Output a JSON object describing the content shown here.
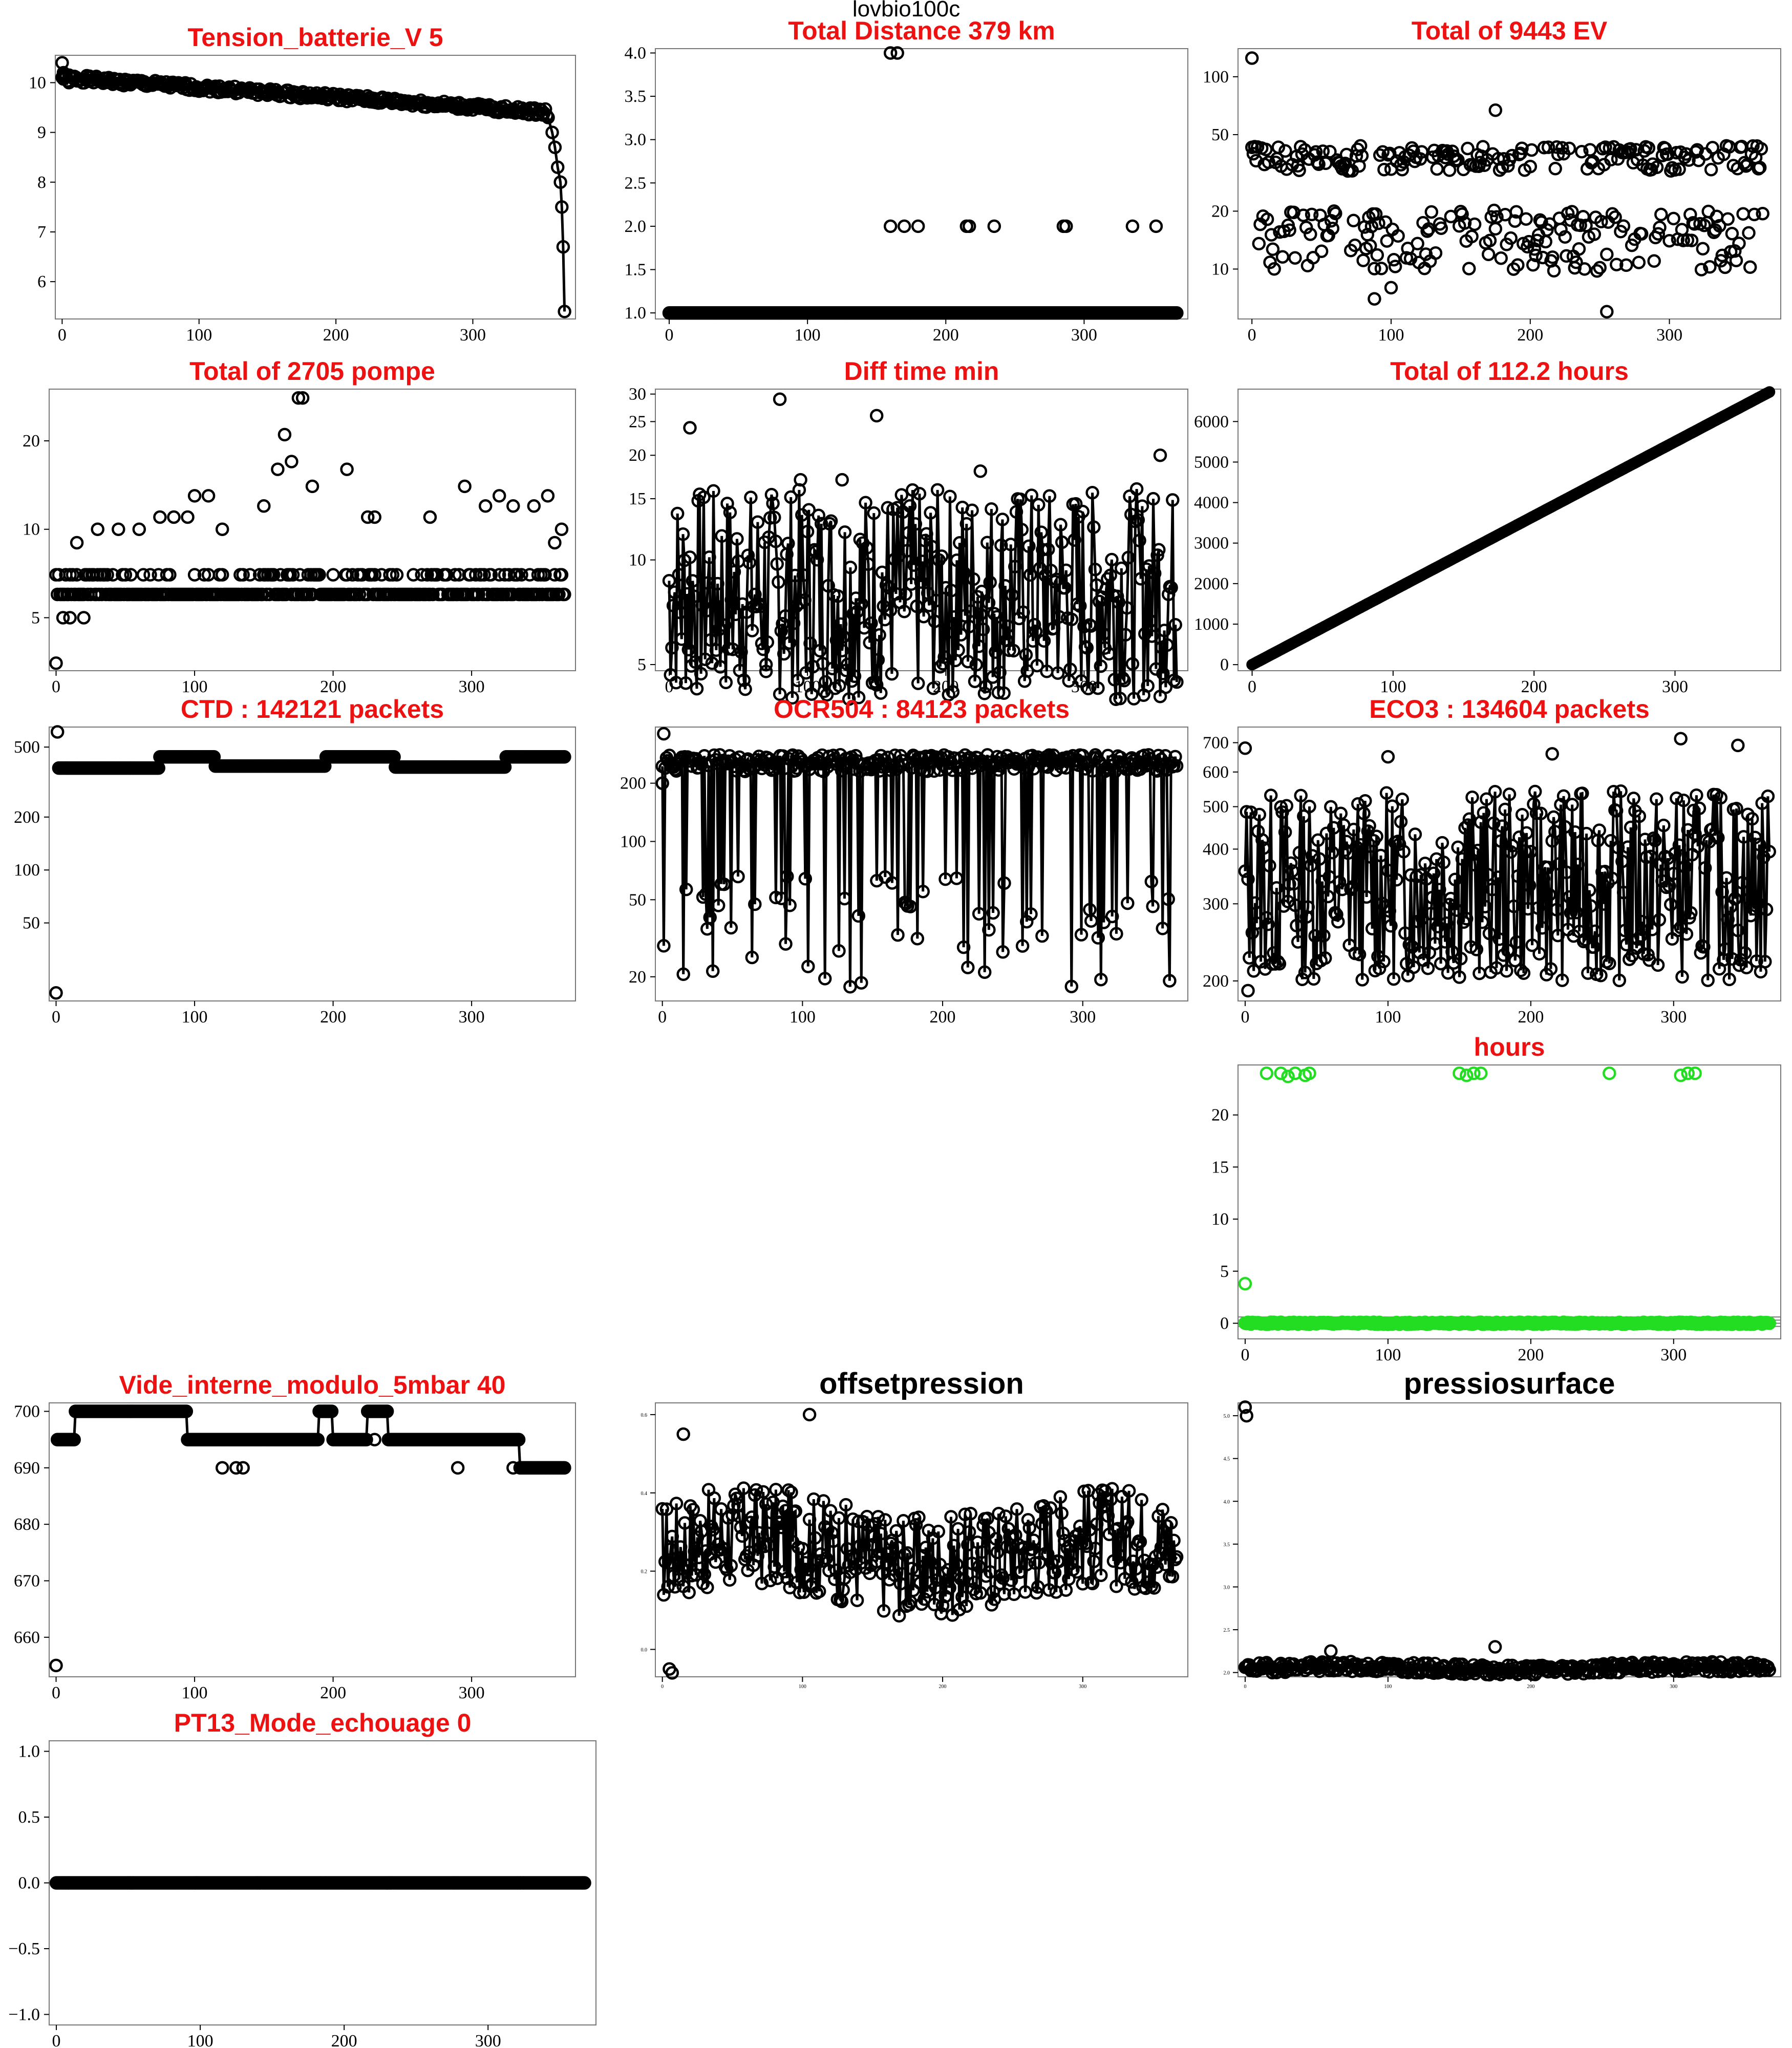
{
  "figure": {
    "title": "lovbio100c",
    "marker_colors": {
      "default": "#000000",
      "highlight": "#22dd22",
      "title": "#ee1111"
    }
  },
  "chart_data": [
    {
      "id": "tension",
      "type": "line",
      "log_y": false,
      "points": true,
      "lines": true,
      "title": "Tension_batterie_V 5",
      "xlim": [
        -5,
        375
      ],
      "ylim": [
        5.25,
        10.55
      ],
      "xticks": [
        0,
        100,
        200,
        300
      ],
      "yticks": [
        6,
        7,
        8,
        9,
        10
      ],
      "generator": "linear_decay",
      "n": 368,
      "y_start": 10.1,
      "y_end": 9.4,
      "tail": [
        [
          355,
          9.3
        ],
        [
          358,
          9.0
        ],
        [
          360,
          8.7
        ],
        [
          362,
          8.3
        ],
        [
          364,
          8.0
        ],
        [
          365,
          7.5
        ],
        [
          366,
          6.7
        ],
        [
          367,
          5.4
        ]
      ],
      "extra_points": [
        [
          0,
          10.4
        ],
        [
          1,
          10.2
        ],
        [
          2,
          10.1
        ],
        [
          5,
          10.0
        ]
      ]
    },
    {
      "id": "distance",
      "type": "scatter",
      "log_y": false,
      "points": true,
      "lines": false,
      "title": "Total Distance  379  km",
      "xlim": [
        -10,
        375
      ],
      "ylim": [
        0.93,
        4.05
      ],
      "xticks": [
        0,
        100,
        200,
        300
      ],
      "yticks": [
        1.0,
        1.5,
        2.0,
        2.5,
        3.0,
        3.5,
        4.0
      ],
      "generator": "constant",
      "n": 368,
      "base": 1.0,
      "extra_points": [
        [
          160,
          4
        ],
        [
          165,
          4
        ],
        [
          160,
          2
        ],
        [
          170,
          2
        ],
        [
          180,
          2
        ],
        [
          215,
          2
        ],
        [
          217,
          2
        ],
        [
          235,
          2
        ],
        [
          285,
          2
        ],
        [
          287,
          2
        ],
        [
          335,
          2
        ],
        [
          352,
          2
        ]
      ]
    },
    {
      "id": "ev",
      "type": "scatter",
      "log_y": true,
      "points": true,
      "lines": false,
      "title": "Total of  9443  EV",
      "xlim": [
        -10,
        380
      ],
      "ylim": [
        5.5,
        140
      ],
      "xticks": [
        0,
        100,
        200,
        300
      ],
      "yticks": [
        10,
        20,
        50,
        100
      ],
      "generator": "bimodal",
      "n": 368,
      "high": 38,
      "low": 15,
      "seed": 3,
      "extra_points": [
        [
          0,
          125
        ],
        [
          175,
          67
        ],
        [
          88,
          7
        ],
        [
          100,
          8
        ],
        [
          255,
          6
        ]
      ]
    },
    {
      "id": "pompe",
      "type": "scatter",
      "log_y": true,
      "points": true,
      "lines": false,
      "title": "Total of  2705  pompe",
      "xlim": [
        -5,
        375
      ],
      "ylim": [
        3.3,
        30
      ],
      "xticks": [
        0,
        100,
        200,
        300
      ],
      "yticks": [
        5,
        10,
        20
      ],
      "generator": "levels",
      "n": 368,
      "base": 6,
      "alt": 7,
      "seed": 5,
      "extra_points": [
        [
          0,
          3.5
        ],
        [
          5,
          5
        ],
        [
          10,
          5
        ],
        [
          15,
          9
        ],
        [
          20,
          5
        ],
        [
          30,
          10
        ],
        [
          45,
          10
        ],
        [
          60,
          10
        ],
        [
          75,
          11
        ],
        [
          85,
          11
        ],
        [
          95,
          11
        ],
        [
          100,
          13
        ],
        [
          110,
          13
        ],
        [
          120,
          10
        ],
        [
          150,
          12
        ],
        [
          160,
          16
        ],
        [
          165,
          21
        ],
        [
          170,
          17
        ],
        [
          175,
          28
        ],
        [
          178,
          28
        ],
        [
          185,
          14
        ],
        [
          210,
          16
        ],
        [
          225,
          11
        ],
        [
          230,
          11
        ],
        [
          270,
          11
        ],
        [
          295,
          14
        ],
        [
          310,
          12
        ],
        [
          320,
          13
        ],
        [
          330,
          12
        ],
        [
          345,
          12
        ],
        [
          355,
          13
        ],
        [
          360,
          9
        ],
        [
          365,
          10
        ]
      ]
    },
    {
      "id": "difftime",
      "type": "line",
      "log_y": true,
      "points": true,
      "lines": true,
      "title": "Diff time min",
      "xlim": [
        -10,
        375
      ],
      "ylim": [
        4.8,
        31
      ],
      "xticks": [
        0,
        100,
        200,
        300
      ],
      "yticks": [
        5,
        10,
        15,
        20,
        25,
        30
      ],
      "generator": "noisy",
      "n": 368,
      "center": 8,
      "spread": 0.35,
      "seed": 7,
      "extra_points": [
        [
          70,
          5
        ],
        [
          80,
          29
        ],
        [
          95,
          17
        ],
        [
          150,
          26
        ],
        [
          15,
          24
        ],
        [
          125,
          17
        ],
        [
          225,
          18
        ],
        [
          355,
          20
        ]
      ]
    },
    {
      "id": "hours_total",
      "type": "line",
      "log_y": false,
      "points": true,
      "lines": true,
      "title": "Total of  112.2  hours",
      "xlim": [
        -10,
        375
      ],
      "ylim": [
        -150,
        6800
      ],
      "xticks": [
        0,
        100,
        200,
        300
      ],
      "yticks": [
        0,
        1000,
        2000,
        3000,
        4000,
        5000,
        6000
      ],
      "generator": "ramp",
      "n": 368,
      "y_start": 0,
      "y_end": 6730
    },
    {
      "id": "ctd",
      "type": "line",
      "log_y": true,
      "points": true,
      "lines": true,
      "title": "CTD  : 142121  packets",
      "xlim": [
        -5,
        375
      ],
      "ylim": [
        18,
        650
      ],
      "xticks": [
        0,
        100,
        200,
        300
      ],
      "yticks": [
        50,
        100,
        200,
        500
      ],
      "generator": "steps",
      "n": 368,
      "segments": [
        [
          2,
          75,
          380
        ],
        [
          75,
          115,
          440
        ],
        [
          115,
          195,
          390
        ],
        [
          195,
          245,
          440
        ],
        [
          245,
          325,
          385
        ],
        [
          325,
          368,
          440
        ]
      ],
      "extra_points": [
        [
          0,
          20
        ],
        [
          1,
          610
        ]
      ]
    },
    {
      "id": "ocr",
      "type": "line",
      "log_y": true,
      "points": true,
      "lines": true,
      "title": "OCR504  : 84123  packets",
      "xlim": [
        -5,
        375
      ],
      "ylim": [
        15,
        390
      ],
      "xticks": [
        0,
        100,
        200,
        300
      ],
      "yticks": [
        20,
        50,
        100,
        200
      ],
      "generator": "dropouts",
      "n": 368,
      "base": 255,
      "low": 25,
      "seed": 11,
      "extra_points": [
        [
          0,
          200
        ],
        [
          1,
          360
        ]
      ]
    },
    {
      "id": "eco3",
      "type": "line",
      "log_y": true,
      "points": true,
      "lines": true,
      "title": "ECO3  : 134604  packets",
      "xlim": [
        -5,
        375
      ],
      "ylim": [
        180,
        760
      ],
      "xticks": [
        0,
        100,
        200,
        300
      ],
      "yticks": [
        200,
        300,
        400,
        500,
        600,
        700
      ],
      "generator": "noisy",
      "n": 368,
      "center": 330,
      "spread": 0.25,
      "seed": 13,
      "extra_points": [
        [
          0,
          680
        ],
        [
          2,
          190
        ],
        [
          100,
          650
        ],
        [
          215,
          660
        ],
        [
          305,
          715
        ],
        [
          345,
          690
        ]
      ]
    },
    {
      "id": "hours_daily",
      "type": "scatter",
      "log_y": false,
      "points": true,
      "lines": false,
      "title": "hours",
      "color": "#22dd22",
      "xlim": [
        -5,
        375
      ],
      "ylim": [
        -1.5,
        24.8
      ],
      "xticks": [
        0,
        100,
        200,
        300
      ],
      "yticks": [
        0,
        5,
        10,
        15,
        20
      ],
      "hlines": [
        -0.3,
        0,
        0.3,
        0.6
      ],
      "generator": "near_zero",
      "n": 368,
      "extra_points": [
        [
          0,
          3.8
        ],
        [
          15,
          24
        ],
        [
          25,
          24
        ],
        [
          30,
          23.7
        ],
        [
          35,
          24
        ],
        [
          42,
          23.8
        ],
        [
          45,
          24
        ],
        [
          150,
          24
        ],
        [
          155,
          23.8
        ],
        [
          160,
          24
        ],
        [
          165,
          24
        ],
        [
          255,
          24
        ],
        [
          305,
          23.8
        ],
        [
          310,
          24
        ],
        [
          315,
          24
        ]
      ]
    },
    {
      "id": "vide",
      "type": "line",
      "log_y": false,
      "points": true,
      "lines": true,
      "title": "Vide_interne_modulo_5mbar 40",
      "xlim": [
        -5,
        375
      ],
      "ylim": [
        653,
        701.5
      ],
      "xticks": [
        0,
        100,
        200,
        300
      ],
      "yticks": [
        660,
        670,
        680,
        690,
        700
      ],
      "generator": "steps",
      "n": 368,
      "segments": [
        [
          1,
          14,
          695
        ],
        [
          14,
          22,
          700
        ],
        [
          22,
          95,
          700
        ],
        [
          95,
          190,
          695
        ],
        [
          190,
          200,
          700
        ],
        [
          200,
          235,
          695
        ],
        [
          225,
          240,
          700
        ],
        [
          240,
          335,
          695
        ],
        [
          335,
          368,
          690
        ]
      ],
      "extra_points": [
        [
          0,
          655
        ],
        [
          120,
          690
        ],
        [
          130,
          690
        ],
        [
          135,
          690
        ],
        [
          205,
          695
        ],
        [
          230,
          695
        ],
        [
          290,
          690
        ],
        [
          330,
          690
        ]
      ]
    },
    {
      "id": "offset",
      "type": "line",
      "log_y": false,
      "points": true,
      "lines": true,
      "title": "offsetpression",
      "title_style": "black",
      "tick_style": "small",
      "xlim": [
        -5,
        375
      ],
      "ylim": [
        -0.07,
        0.63
      ],
      "xticks": [
        0,
        100,
        200,
        300
      ],
      "yticks": [
        0.0,
        0.2,
        0.4,
        0.6
      ],
      "generator": "noisy_lin",
      "n": 368,
      "center": 0.25,
      "amp": 0.13,
      "seed": 17,
      "extra_points": [
        [
          5,
          -0.05
        ],
        [
          7,
          -0.06
        ],
        [
          105,
          0.6
        ],
        [
          15,
          0.55
        ]
      ]
    },
    {
      "id": "pressio",
      "type": "line",
      "log_y": false,
      "points": true,
      "lines": true,
      "title": "pressiosurface",
      "title_style": "black",
      "tick_style": "small",
      "xlim": [
        -5,
        375
      ],
      "ylim": [
        1.95,
        5.15
      ],
      "xticks": [
        0,
        100,
        200,
        300
      ],
      "yticks": [
        2.0,
        2.5,
        3.0,
        3.5,
        4.0,
        4.5,
        5.0
      ],
      "generator": "noisy_lin",
      "n": 368,
      "center": 2.05,
      "amp": 0.06,
      "seed": 19,
      "extra_points": [
        [
          0,
          5.1
        ],
        [
          1,
          5.0
        ],
        [
          60,
          2.25
        ],
        [
          175,
          2.3
        ]
      ]
    },
    {
      "id": "echouage",
      "type": "line",
      "log_y": false,
      "points": true,
      "lines": true,
      "title": "PT13_Mode_echouage  0",
      "xlim": [
        -5,
        375
      ],
      "ylim": [
        -1.08,
        1.08
      ],
      "xticks": [
        0,
        100,
        200,
        300
      ],
      "yticks": [
        -1.0,
        -0.5,
        0.0,
        0.5,
        1.0
      ],
      "generator": "constant",
      "n": 368,
      "base": 0
    }
  ]
}
